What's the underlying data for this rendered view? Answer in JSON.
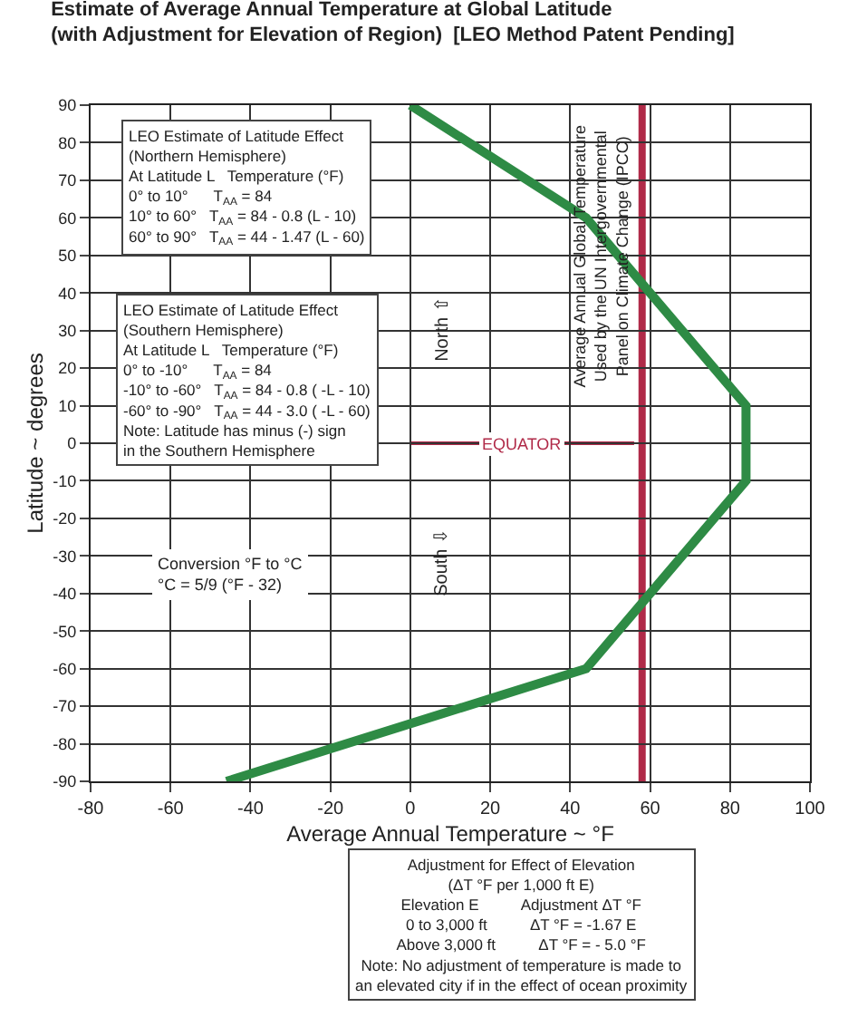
{
  "chart_data": {
    "type": "line",
    "title": "Estimate of Average Annual Temperature at Global Latitude\n(with Adjustment for Elevation of Region)  [LEO Method Patent Pending]",
    "xlabel": "Average Annual Temperature ~ °F",
    "ylabel": "Latitude ~ degrees",
    "series": [
      {
        "color": "#2e8b45",
        "x": [
          0,
          44,
          84,
          84,
          84,
          44,
          -46
        ],
        "values": [
          90,
          60,
          10,
          0,
          -10,
          -60,
          -90
        ]
      }
    ],
    "xlim": [
      -80,
      100
    ],
    "xticks": [
      -80,
      -60,
      -40,
      -20,
      0,
      20,
      40,
      60,
      80,
      100
    ],
    "ylim": [
      -90,
      90
    ],
    "yticks": [
      -90,
      -80,
      -70,
      -60,
      -50,
      -40,
      -30,
      -20,
      -10,
      0,
      10,
      20,
      30,
      40,
      50,
      60,
      70,
      80,
      90
    ],
    "grid": true,
    "marker": "none",
    "line_style": "solid",
    "ref_lines": [
      {
        "axis": "x",
        "value": 58,
        "label": "Average Annual Global Temperature\nUsed by the UN Intergovernmental\nPanel on Climate Change (IPCC)",
        "color": "#b02a48"
      },
      {
        "axis": "y",
        "value": 0,
        "label": "EQUATOR",
        "color": "#b02a48"
      }
    ],
    "annotations": [
      "LEO Estimate of Latitude Effect\n(Northern Hemisphere)\nAt Latitude L   Temperature (°F)\n0° to 10°      T$_{AA}$ = 84\n10° to 60°   T$_{AA}$ = 84 - 0.8 (L - 10)\n60° to 90°   T$_{AA}$ = 44 - 1.47 (L - 60)",
      "LEO Estimate of Latitude Effect\n(Southern Hemisphere)\nAt Latitude L   Temperature (°F)\n0° to -10°      T$_{AA}$ = 84\n-10° to -60°   T$_{AA}$ = 84 - 0.8 ( -L - 10)\n-60° to -90°   T$_{AA}$ = 44 - 3.0 ( -L - 60)\nNote: Latitude has minus (-) sign\nin the Southern Hemisphere",
      "Conversion °F to °C\n°C = 5/9 (°F - 32)",
      "North ⇧",
      "South ⇩",
      "Adjustment for Effect of Elevation\n(ΔT °F per 1,000 ft E)\nElevation E          Adjustment ΔT °F\n0 to 3,000 ft          ΔT °F = -1.67 E\nAbove 3,000 ft          ΔT °F = - 5.0 °F\nNote: No adjustment of temperature is made to\nan elevated city if in the effect of ocean proximity"
    ]
  }
}
